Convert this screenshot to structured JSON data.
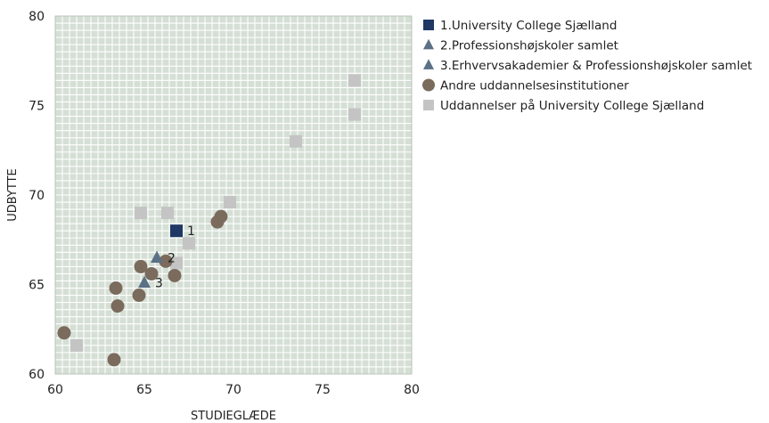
{
  "chart_data": {
    "type": "scatter",
    "xlabel": "STUDIEGLÆDE",
    "ylabel": "UDBYTTE",
    "xlim": [
      60,
      80
    ],
    "ylim": [
      60,
      80
    ],
    "x_ticks": [
      60,
      65,
      70,
      75,
      80
    ],
    "y_ticks": [
      60,
      65,
      70,
      75,
      80
    ],
    "grid": true,
    "legend_position": "right",
    "series": [
      {
        "name": "1.University College Sjælland",
        "marker": "square",
        "color": "#1f3864",
        "points": [
          {
            "x": 66.8,
            "y": 68.0,
            "label": "1"
          }
        ]
      },
      {
        "name": "2.Professionshøjskoler samlet",
        "marker": "triangle",
        "color": "#5b7186",
        "points": [
          {
            "x": 65.7,
            "y": 66.5,
            "label": "2"
          }
        ]
      },
      {
        "name": "3.Erhvervsakademier & Professionshøjskoler samlet",
        "marker": "triangle",
        "color": "#5b7186",
        "points": [
          {
            "x": 65.0,
            "y": 65.1,
            "label": "3"
          }
        ]
      },
      {
        "name": "Andre uddannelsesinstitutioner",
        "marker": "circle",
        "color": "#7b6b5d",
        "points": [
          {
            "x": 60.5,
            "y": 62.3
          },
          {
            "x": 63.3,
            "y": 60.8
          },
          {
            "x": 63.4,
            "y": 64.8
          },
          {
            "x": 63.5,
            "y": 63.8
          },
          {
            "x": 64.7,
            "y": 64.4
          },
          {
            "x": 64.8,
            "y": 66.0
          },
          {
            "x": 65.4,
            "y": 65.6
          },
          {
            "x": 66.2,
            "y": 66.3
          },
          {
            "x": 66.7,
            "y": 65.5
          },
          {
            "x": 69.1,
            "y": 68.5
          },
          {
            "x": 69.3,
            "y": 68.8
          }
        ]
      },
      {
        "name": "Uddannelser på University College Sjælland",
        "marker": "square",
        "color": "#c4c4c4",
        "points": [
          {
            "x": 61.2,
            "y": 61.6
          },
          {
            "x": 64.8,
            "y": 69.0
          },
          {
            "x": 66.3,
            "y": 69.0
          },
          {
            "x": 66.8,
            "y": 66.2
          },
          {
            "x": 67.5,
            "y": 67.3
          },
          {
            "x": 69.8,
            "y": 69.6
          },
          {
            "x": 73.5,
            "y": 73.0
          },
          {
            "x": 76.8,
            "y": 74.5
          },
          {
            "x": 76.8,
            "y": 76.4
          }
        ]
      }
    ],
    "legend_order": [
      0,
      1,
      2,
      3,
      4
    ]
  }
}
